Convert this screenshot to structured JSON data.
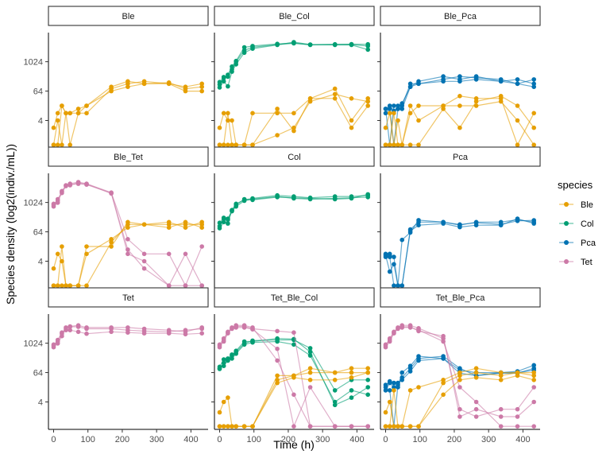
{
  "chart_data": {
    "type": "line",
    "xlabel": "Time (h)",
    "ylabel": "Species density (log2(indiv./mL))",
    "x_ticks": [
      0,
      100,
      200,
      300,
      400
    ],
    "y_ticks": [
      4,
      64,
      1024
    ],
    "y_scale": "log2",
    "xlim": [
      -15,
      450
    ],
    "ylim": [
      0.3,
      16000
    ],
    "legend": {
      "title": "species",
      "position": "right",
      "entries": [
        {
          "name": "Ble",
          "color": "#E69F00"
        },
        {
          "name": "Col",
          "color": "#009E73"
        },
        {
          "name": "Pca",
          "color": "#0072B2"
        },
        {
          "name": "Tet",
          "color": "#CC79A7"
        }
      ]
    },
    "times": [
      0,
      12,
      24,
      36,
      48,
      72,
      96,
      168,
      216,
      264,
      336,
      384,
      432
    ],
    "panels": [
      {
        "title": "Ble",
        "series": [
          {
            "species": "Ble",
            "replicate": 1,
            "values": [
              2,
              8,
              16,
              8,
              8,
              12,
              16,
              64,
              96,
              128,
              128,
              64,
              64
            ]
          },
          {
            "species": "Ble",
            "replicate": 2,
            "values": [
              0.4,
              4,
              0.4,
              8,
              0.4,
              8,
              8,
              80,
              128,
              160,
              128,
              96,
              128
            ]
          },
          {
            "species": "Ble",
            "replicate": 3,
            "values": [
              0.4,
              0.4,
              16,
              8,
              8,
              8,
              16,
              96,
              160,
              128,
              144,
              80,
              96
            ]
          }
        ]
      },
      {
        "title": "Ble_Col",
        "series": [
          {
            "species": "Col",
            "replicate": 1,
            "values": [
              120,
              220,
              300,
              650,
              1100,
              4000,
              4500,
              5500,
              6000,
              5000,
              5200,
              5400,
              5300
            ]
          },
          {
            "species": "Col",
            "replicate": 2,
            "values": [
              90,
              160,
              100,
              400,
              800,
              2400,
              3500,
              5000,
              6500,
              5200,
              5000,
              5000,
              3200
            ]
          },
          {
            "species": "Col",
            "replicate": 3,
            "values": [
              150,
              240,
              250,
              500,
              1000,
              3000,
              4000,
              5200,
              5800,
              5100,
              5300,
              5200,
              4500
            ]
          },
          {
            "species": "Ble",
            "replicate": 1,
            "values": [
              2,
              8,
              4,
              4,
              0.4,
              0.4,
              0.4,
              1,
              2,
              24,
              48,
              32,
              24
            ]
          },
          {
            "species": "Ble",
            "replicate": 2,
            "values": [
              0.4,
              0.4,
              8,
              0.4,
              0.4,
              0.4,
              8,
              8,
              8,
              32,
              32,
              2,
              16
            ]
          },
          {
            "species": "Ble",
            "replicate": 3,
            "values": [
              0.4,
              0.4,
              0.4,
              0.4,
              0.4,
              0.4,
              0.4,
              12,
              1.5,
              32,
              80,
              4,
              32
            ]
          }
        ]
      },
      {
        "title": "Ble_Pca",
        "series": [
          {
            "species": "Pca",
            "replicate": 1,
            "values": [
              8,
              12,
              0.4,
              12,
              16,
              128,
              128,
              192,
              256,
              224,
              192,
              128,
              96
            ]
          },
          {
            "species": "Pca",
            "replicate": 2,
            "values": [
              12,
              16,
              10,
              12,
              12,
              96,
              160,
              256,
              192,
              256,
              160,
              192,
              128
            ]
          },
          {
            "species": "Pca",
            "replicate": 3,
            "values": [
              12,
              0.4,
              16,
              16,
              20,
              96,
              128,
              160,
              160,
              192,
              160,
              128,
              192
            ]
          },
          {
            "species": "Ble",
            "replicate": 1,
            "values": [
              2,
              8,
              0.4,
              4,
              0.4,
              16,
              4,
              16,
              40,
              32,
              32,
              0.4,
              8
            ]
          },
          {
            "species": "Ble",
            "replicate": 2,
            "values": [
              0.4,
              0.4,
              8,
              0.4,
              0.4,
              8,
              16,
              16,
              16,
              16,
              24,
              4,
              0.4
            ]
          },
          {
            "species": "Ble",
            "replicate": 3,
            "values": [
              0.4,
              0.4,
              0.4,
              0.4,
              0.4,
              0.4,
              0.4,
              12,
              2,
              24,
              40,
              16,
              2
            ]
          }
        ]
      },
      {
        "title": "Ble_Tet",
        "series": [
          {
            "species": "Tet",
            "replicate": 1,
            "values": [
              700,
              1000,
              3000,
              5000,
              5500,
              6000,
              5500,
              2500,
              8,
              4,
              0.4,
              0.4,
              0.4
            ]
          },
          {
            "species": "Tet",
            "replicate": 2,
            "values": [
              800,
              1400,
              2800,
              5200,
              6000,
              7000,
              6000,
              2600,
              32,
              8,
              8,
              0.4,
              16
            ]
          },
          {
            "species": "Tet",
            "replicate": 3,
            "values": [
              900,
              1200,
              2500,
              4800,
              5200,
              6500,
              5800,
              2400,
              12,
              2,
              0.4,
              8,
              0.4
            ]
          },
          {
            "species": "Ble",
            "replicate": 1,
            "values": [
              2,
              8,
              4,
              0.4,
              0.4,
              0.4,
              0.4,
              24,
              128,
              128,
              128,
              128,
              128
            ]
          },
          {
            "species": "Ble",
            "replicate": 2,
            "values": [
              0.4,
              0.4,
              0.4,
              0.4,
              0.4,
              0.4,
              8,
              32,
              96,
              128,
              96,
              160,
              96
            ]
          },
          {
            "species": "Ble",
            "replicate": 3,
            "values": [
              0.4,
              0.4,
              16,
              0.4,
              0.4,
              0.4,
              16,
              16,
              160,
              128,
              160,
              96,
              160
            ]
          }
        ]
      },
      {
        "title": "Col",
        "series": [
          {
            "species": "Col",
            "replicate": 1,
            "values": [
              90,
              160,
              140,
              500,
              900,
              1300,
              1500,
              2000,
              1800,
              1600,
              1800,
              1800,
              2000
            ]
          },
          {
            "species": "Col",
            "replicate": 2,
            "values": [
              110,
              220,
              200,
              450,
              700,
              1200,
              1400,
              1800,
              1500,
              1400,
              1500,
              1600,
              1700
            ]
          },
          {
            "species": "Col",
            "replicate": 3,
            "values": [
              150,
              240,
              220,
              480,
              800,
              1400,
              1300,
              1700,
              1600,
              1500,
              1400,
              1500,
              2200
            ]
          }
        ]
      },
      {
        "title": "Pca",
        "series": [
          {
            "species": "Pca",
            "replicate": 1,
            "values": [
              6,
              8,
              6,
              0.4,
              30,
              60,
              192,
              160,
              120,
              160,
              160,
              200,
              160
            ]
          },
          {
            "species": "Pca",
            "replicate": 2,
            "values": [
              8,
              6,
              0.4,
              0.4,
              0.4,
              80,
              160,
              160,
              128,
              150,
              130,
              180,
              190
            ]
          },
          {
            "species": "Pca",
            "replicate": 3,
            "values": [
              7,
              1.5,
              3,
              0.4,
              0.4,
              70,
              120,
              140,
              100,
              120,
              120,
              220,
              140
            ]
          }
        ]
      },
      {
        "title": "Tet",
        "series": [
          {
            "species": "Tet",
            "replicate": 1,
            "values": [
              700,
              1000,
              2000,
              4500,
              5000,
              5500,
              4500,
              4500,
              4500,
              4000,
              3500,
              3000,
              4500
            ]
          },
          {
            "species": "Tet",
            "replicate": 2,
            "values": [
              800,
              1400,
              2800,
              4000,
              4800,
              4800,
              4000,
              4000,
              3500,
              3200,
              3000,
              3500,
              4000
            ]
          },
          {
            "species": "Tet",
            "replicate": 3,
            "values": [
              900,
              1200,
              2500,
              3500,
              3500,
              3000,
              2500,
              3000,
              2800,
              2600,
              2600,
              2400,
              2600
            ]
          }
        ]
      },
      {
        "title": "Tet_Ble_Col",
        "series": [
          {
            "species": "Col",
            "replicate": 1,
            "values": [
              96,
              120,
              200,
              320,
              500,
              1200,
              1200,
              1600,
              1500,
              450,
              3,
              6,
              16
            ]
          },
          {
            "species": "Col",
            "replicate": 2,
            "values": [
              110,
              220,
              240,
              350,
              450,
              1000,
              1300,
              1400,
              1400,
              640,
              12,
              32,
              32
            ]
          },
          {
            "species": "Col",
            "replicate": 3,
            "values": [
              90,
              160,
              200,
              240,
              380,
              900,
              1100,
              1200,
              900,
              320,
              4,
              12,
              8
            ]
          },
          {
            "species": "Tet",
            "replicate": 1,
            "values": [
              800,
              1200,
              2600,
              4200,
              5000,
              5000,
              4000,
              3200,
              2800,
              0.4,
              0.4,
              0.4,
              0.4
            ]
          },
          {
            "species": "Tet",
            "replicate": 2,
            "values": [
              900,
              1600,
              3000,
              4500,
              5500,
              5500,
              4500,
              200,
              8,
              0.4,
              0.4,
              0.4,
              0.4
            ]
          },
          {
            "species": "Tet",
            "replicate": 3,
            "values": [
              700,
              1400,
              2800,
              4000,
              4500,
              4500,
              3800,
              600,
              0.4,
              16,
              0.4,
              0.4,
              0.4
            ]
          },
          {
            "species": "Ble",
            "replicate": 1,
            "values": [
              1.5,
              4,
              6,
              0.4,
              0.4,
              0.4,
              0.4,
              32,
              48,
              64,
              64,
              96,
              96
            ]
          },
          {
            "species": "Ble",
            "replicate": 2,
            "values": [
              0.4,
              0.4,
              0.4,
              0.4,
              0.4,
              0.4,
              0.4,
              48,
              48,
              96,
              64,
              64,
              64
            ]
          },
          {
            "species": "Ble",
            "replicate": 3,
            "values": [
              0.4,
              0.4,
              0.4,
              0.4,
              0.4,
              0.4,
              0.4,
              24,
              40,
              32,
              32,
              40,
              64
            ]
          }
        ]
      },
      {
        "title": "Tet_Ble_Pca",
        "series": [
          {
            "species": "Pca",
            "replicate": 1,
            "values": [
              12,
              24,
              16,
              16,
              64,
              120,
              300,
              240,
              60,
              48,
              60,
              60,
              96
            ]
          },
          {
            "species": "Pca",
            "replicate": 2,
            "values": [
              16,
              12,
              0.4,
              20,
              40,
              96,
              240,
              300,
              96,
              48,
              64,
              72,
              128
            ]
          },
          {
            "species": "Pca",
            "replicate": 3,
            "values": [
              20,
              28,
              24,
              24,
              32,
              72,
              200,
              240,
              80,
              64,
              64,
              64,
              80
            ]
          },
          {
            "species": "Tet",
            "replicate": 1,
            "values": [
              700,
              1200,
              2600,
              4200,
              4800,
              4800,
              3200,
              2000,
              1,
              2,
              1,
              1,
              4
            ]
          },
          {
            "species": "Tet",
            "replicate": 2,
            "values": [
              800,
              1600,
              3000,
              4500,
              5500,
              5500,
              4200,
              1600,
              2,
              1,
              2,
              2,
              16
            ]
          },
          {
            "species": "Tet",
            "replicate": 3,
            "values": [
              900,
              1400,
              2800,
              4000,
              4500,
              4500,
              3600,
              1200,
              16,
              4,
              0.4,
              0.4,
              0.4
            ]
          },
          {
            "species": "Ble",
            "replicate": 1,
            "values": [
              1.5,
              4,
              0.4,
              0.4,
              0.4,
              12,
              16,
              32,
              64,
              96,
              64,
              64,
              48
            ]
          },
          {
            "species": "Ble",
            "replicate": 2,
            "values": [
              0.4,
              0.4,
              12,
              0.4,
              0.4,
              0.4,
              0.4,
              24,
              48,
              64,
              48,
              64,
              64
            ]
          },
          {
            "species": "Ble",
            "replicate": 3,
            "values": [
              0.4,
              0.4,
              0.4,
              0.4,
              0.4,
              0.4,
              0.4,
              8,
              32,
              40,
              32,
              48,
              32
            ]
          }
        ]
      }
    ]
  }
}
